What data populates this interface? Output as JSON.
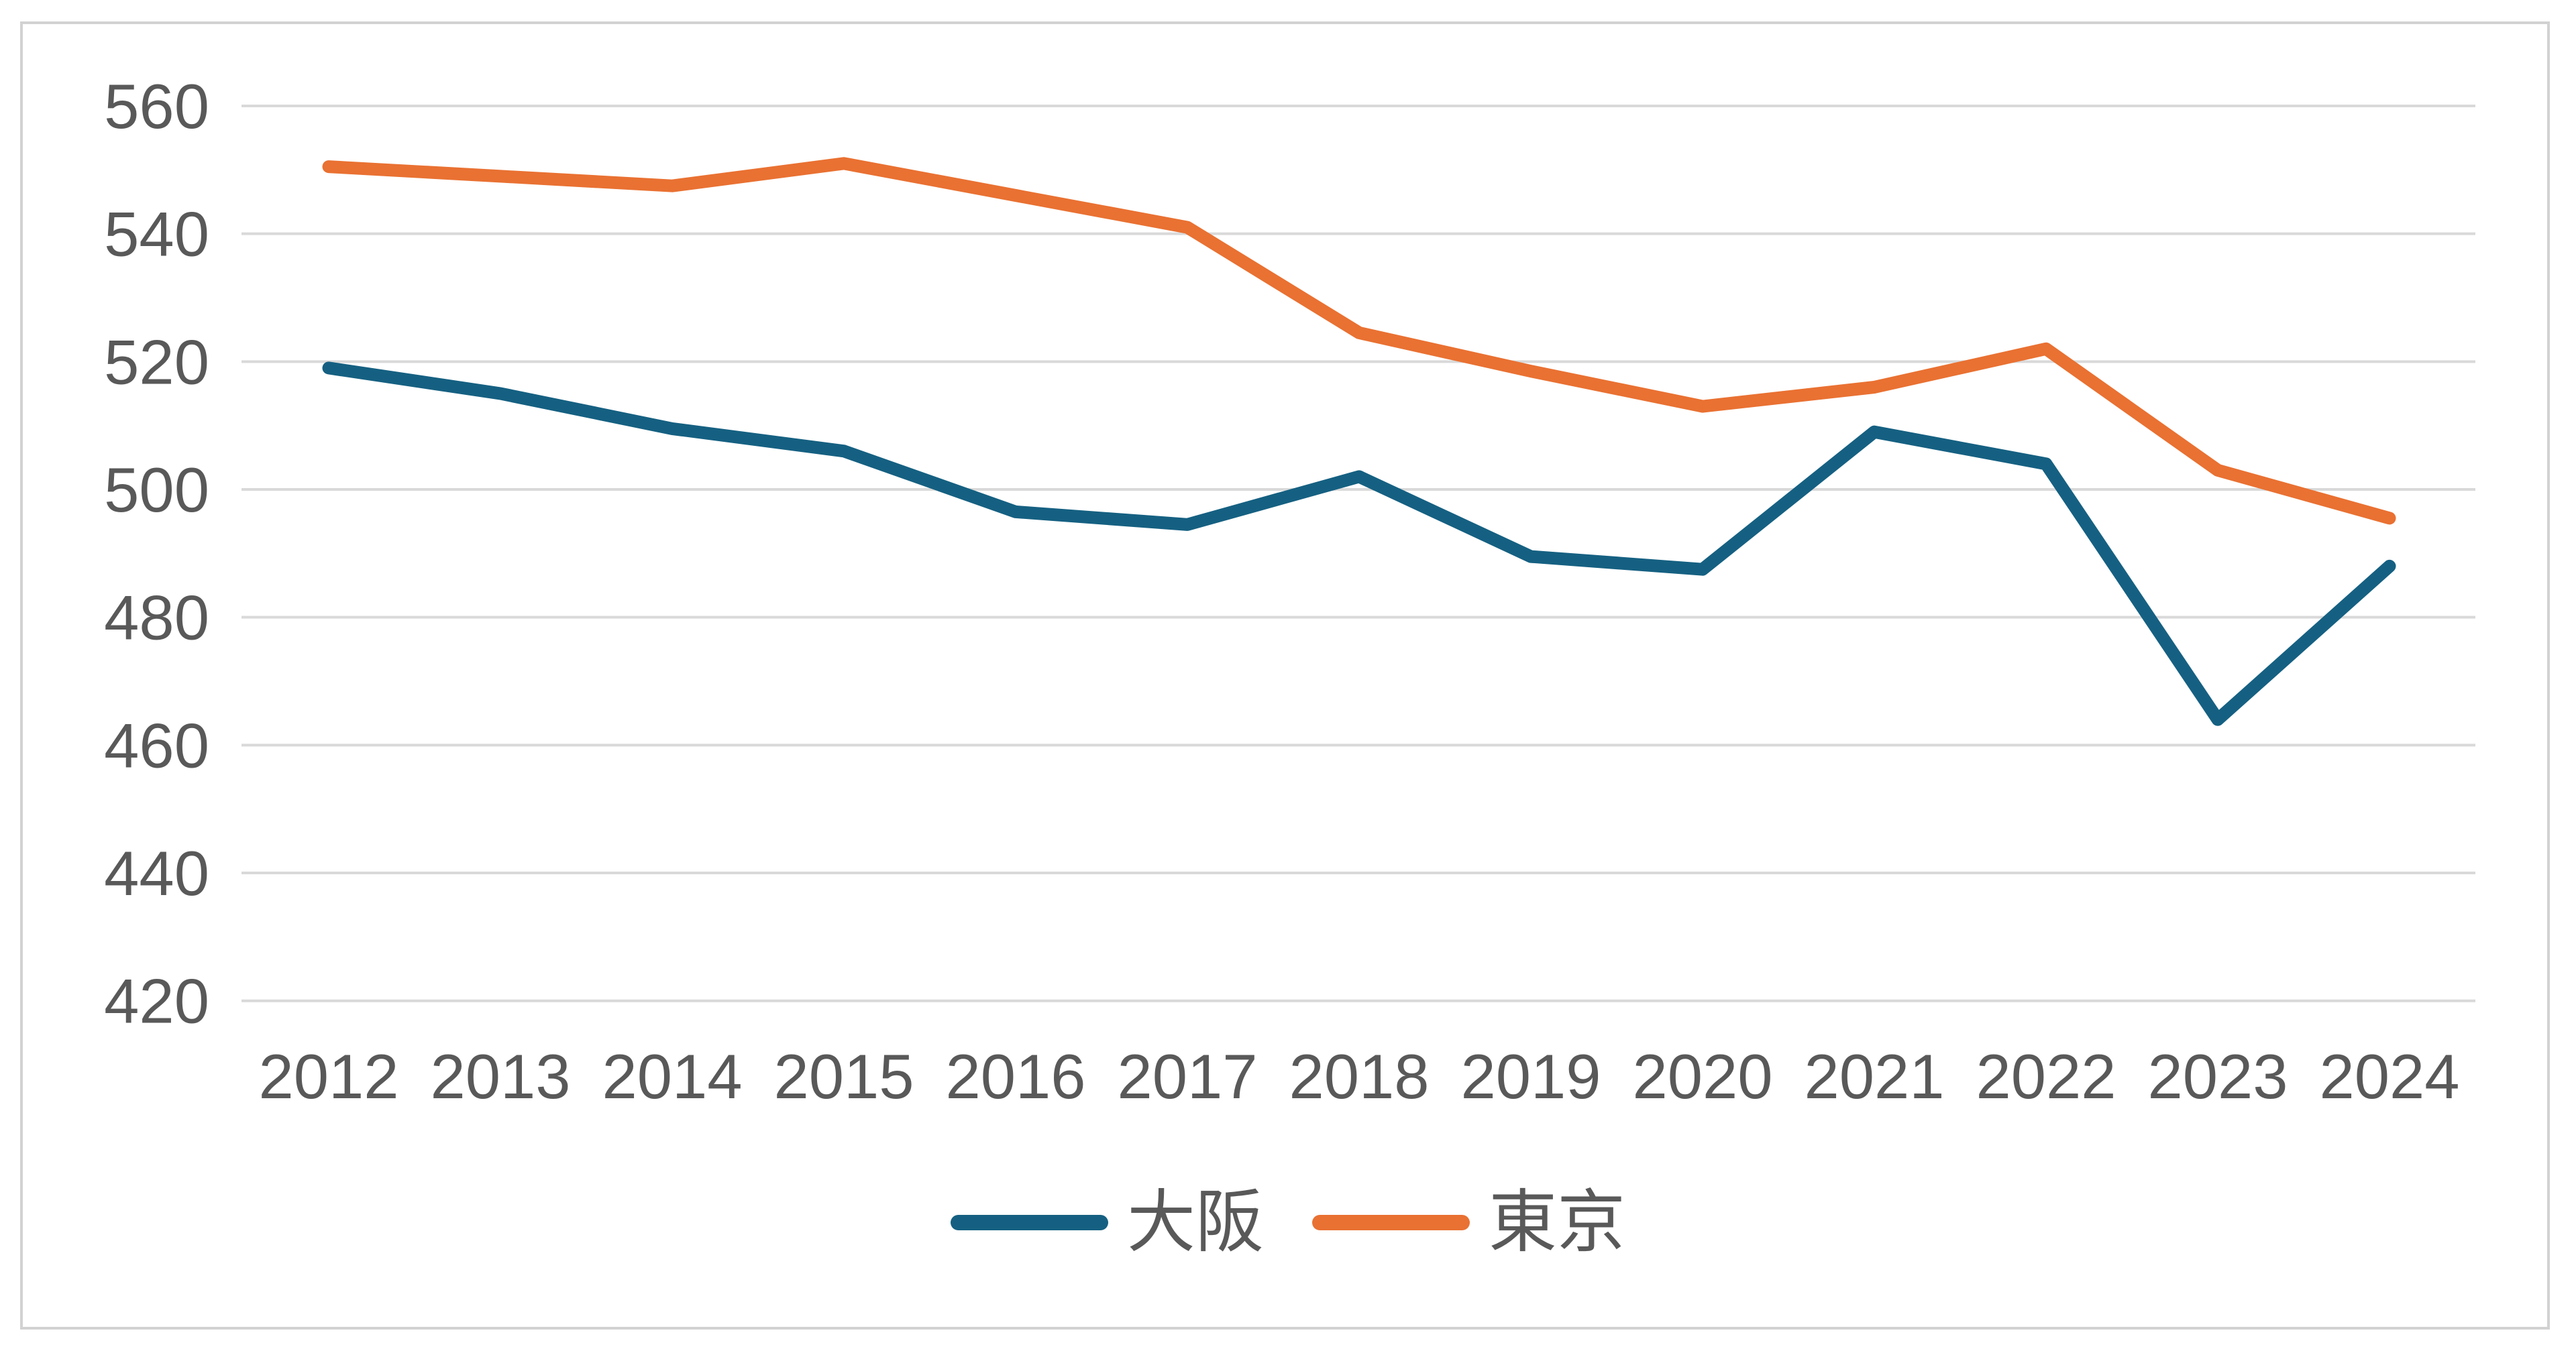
{
  "chart_data": {
    "type": "line",
    "title": "",
    "xlabel": "",
    "ylabel": "",
    "categories": [
      "2012",
      "2013",
      "2014",
      "2015",
      "2016",
      "2017",
      "2018",
      "2019",
      "2020",
      "2021",
      "2022",
      "2023",
      "2024"
    ],
    "series": [
      {
        "name": "大阪",
        "color": "#156082",
        "values": [
          519,
          515,
          509.5,
          506,
          496.5,
          494.5,
          502,
          489.5,
          487.5,
          509,
          504,
          464,
          488
        ]
      },
      {
        "name": "東京",
        "color": "#E97132",
        "values": [
          550.5,
          549,
          547.5,
          551,
          546,
          541,
          524.5,
          518.5,
          513,
          516,
          522,
          503,
          495.5
        ]
      }
    ],
    "y_axis": {
      "min": 420,
      "max": 560,
      "step": 20,
      "tick_labels": [
        "560",
        "540",
        "520",
        "500",
        "480",
        "460",
        "440",
        "420"
      ]
    },
    "grid": true,
    "legend_position": "bottom",
    "style": {
      "gridline_color": "#D9D9D9",
      "tick_label_color": "#595959",
      "frame_border_color": "#D2D2D2",
      "background_color": "#FFFFFF"
    }
  }
}
